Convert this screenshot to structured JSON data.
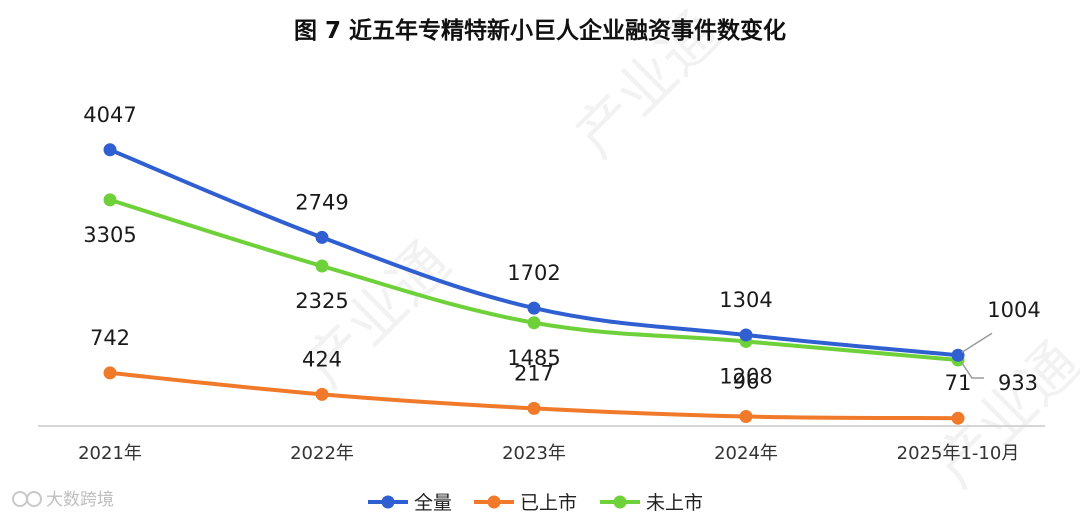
{
  "chart_data": {
    "type": "line",
    "title": "图 7  近五年专精特新小巨人企业融资事件数变化",
    "categories": [
      "2021年",
      "2022年",
      "2023年",
      "2024年",
      "2025年1-10月"
    ],
    "series": [
      {
        "name": "全量",
        "values": [
          4047,
          2749,
          1702,
          1304,
          1004
        ],
        "color": "#2f5fd0"
      },
      {
        "name": "已上市",
        "values": [
          742,
          424,
          217,
          96,
          71
        ],
        "color": "#f07a2a"
      },
      {
        "name": "未上市",
        "values": [
          3305,
          2325,
          1485,
          1208,
          933
        ],
        "color": "#6fd13a"
      }
    ],
    "ylim": [
      0,
      4500
    ],
    "grid": false,
    "legend": "bottom",
    "xlabel": "",
    "ylabel": ""
  },
  "watermark": {
    "brand": "大数跨境",
    "text": "产业通"
  }
}
